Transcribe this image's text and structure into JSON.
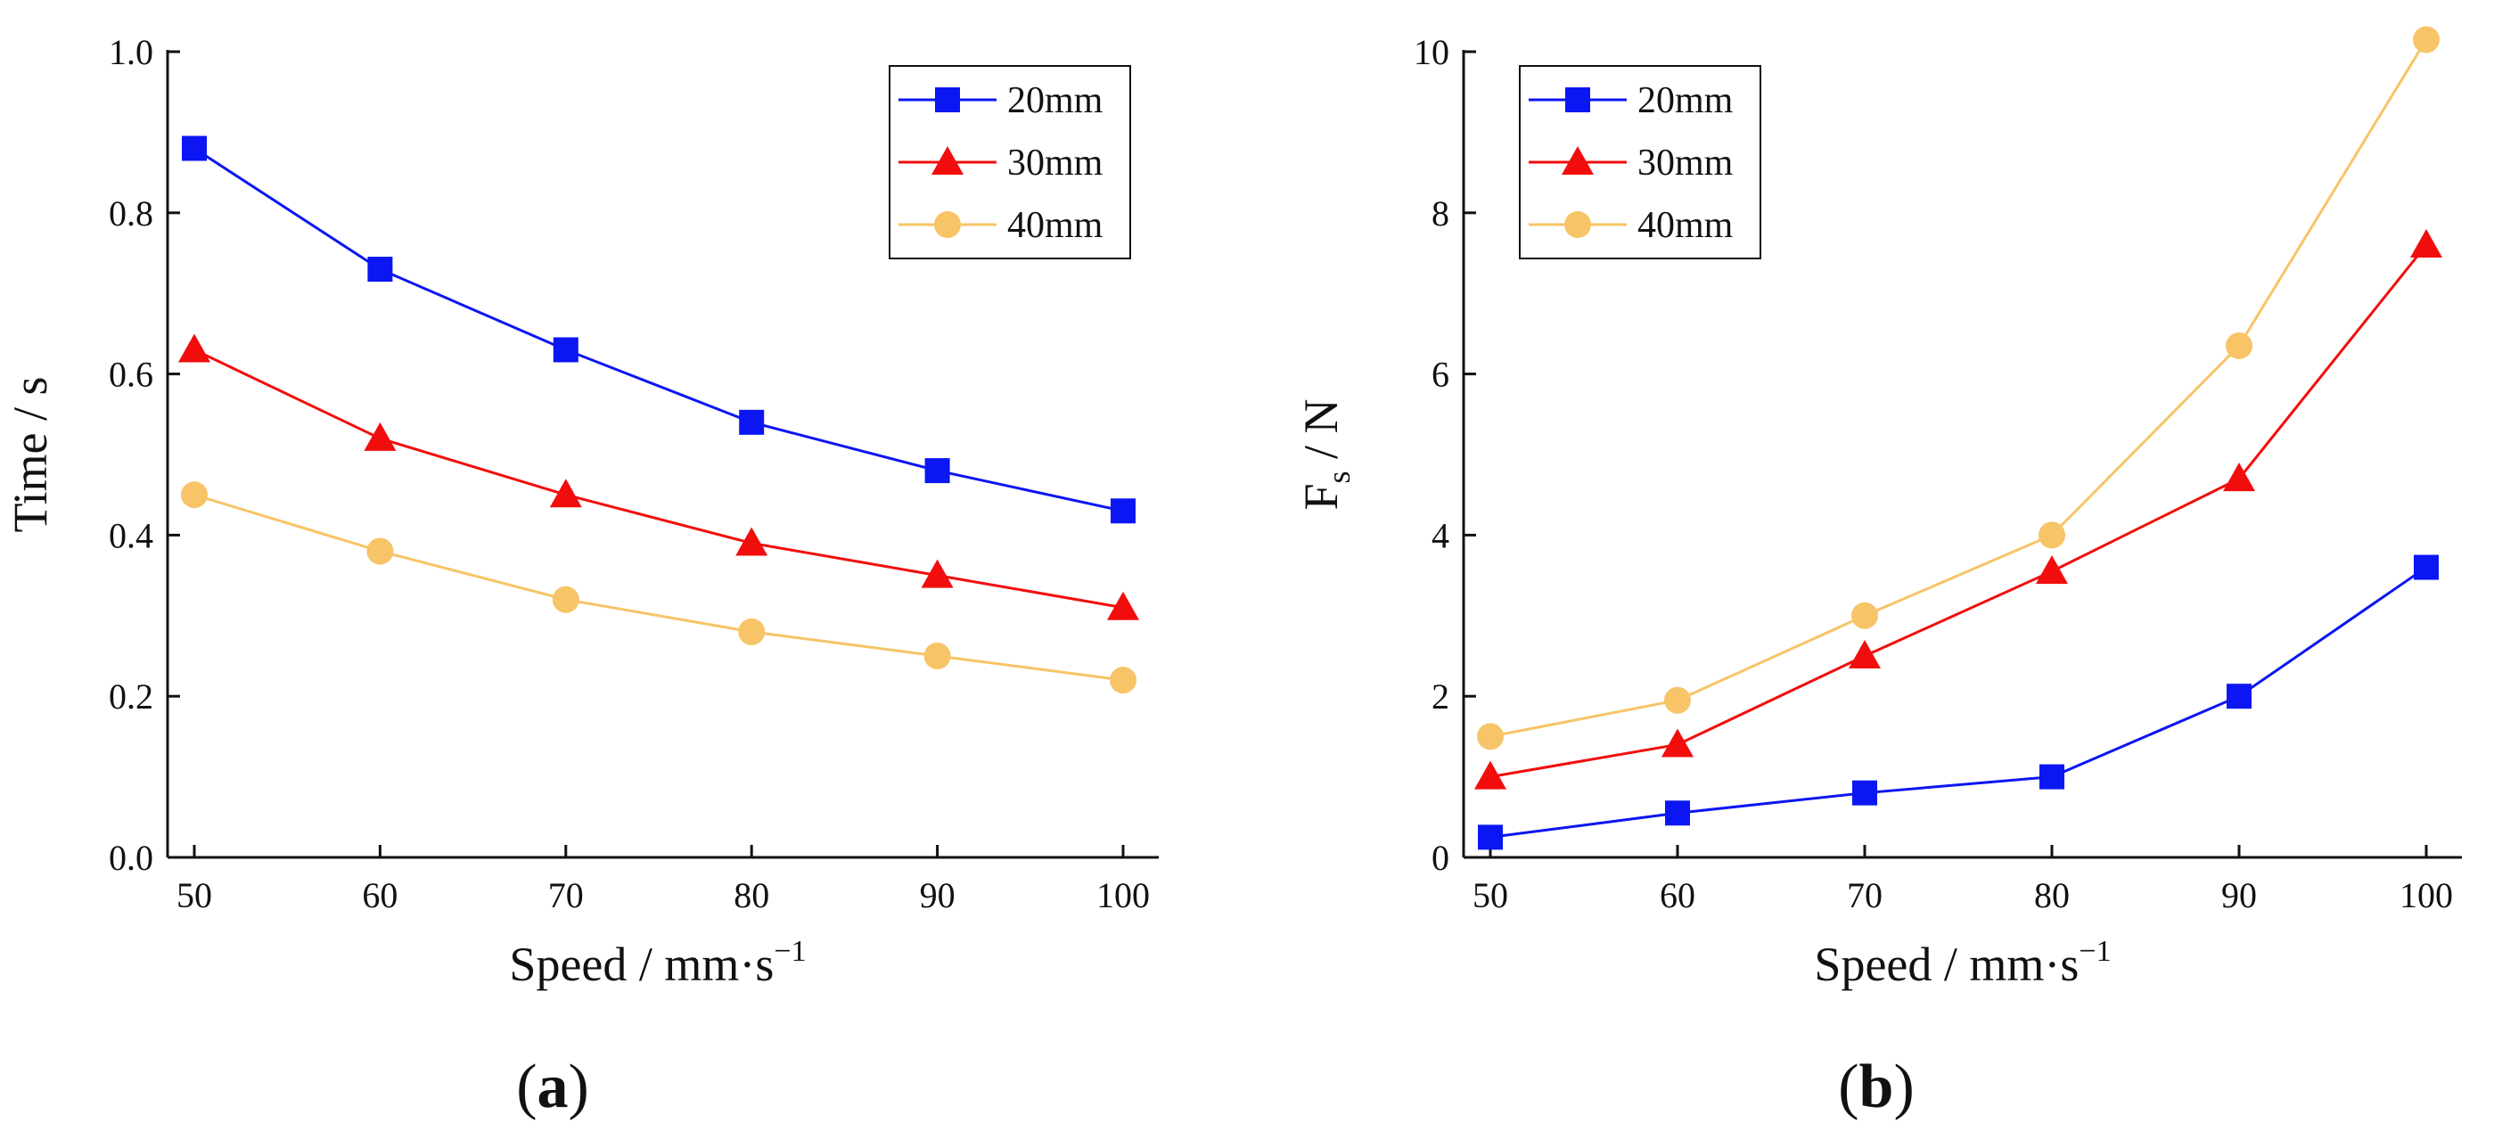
{
  "chart_data": [
    {
      "type": "line",
      "panel_label": "a",
      "xlabel": "Speed / mm·s",
      "xlabel_sup": "−1",
      "ylabel": "Time / s",
      "x": [
        50,
        60,
        70,
        80,
        90,
        100
      ],
      "xticks": [
        "50",
        "60",
        "70",
        "80",
        "90",
        "100"
      ],
      "ylim": [
        0,
        1.0
      ],
      "yticks": [
        "0.0",
        "0.2",
        "0.4",
        "0.6",
        "0.8",
        "1.0"
      ],
      "legend_position": "top-right",
      "series": [
        {
          "name": "20mm",
          "marker": "square",
          "color": "#0b16f2",
          "values": [
            0.88,
            0.73,
            0.63,
            0.54,
            0.48,
            0.43
          ]
        },
        {
          "name": "30mm",
          "marker": "triangle",
          "color": "#f20d0d",
          "values": [
            0.63,
            0.52,
            0.45,
            0.39,
            0.35,
            0.31
          ]
        },
        {
          "name": "40mm",
          "marker": "circle",
          "color": "#f7c467",
          "values": [
            0.45,
            0.38,
            0.32,
            0.28,
            0.25,
            0.22
          ]
        }
      ]
    },
    {
      "type": "line",
      "panel_label": "b",
      "xlabel": "Speed / mm·s",
      "xlabel_sup": "−1",
      "ylabel": "F",
      "ylabel_sub": "s",
      "ylabel_rest": " / N",
      "x": [
        50,
        60,
        70,
        80,
        90,
        100
      ],
      "xticks": [
        "50",
        "60",
        "70",
        "80",
        "90",
        "100"
      ],
      "ylim": [
        0,
        10
      ],
      "yticks": [
        "0",
        "2",
        "4",
        "6",
        "8",
        "10"
      ],
      "legend_position": "top-left",
      "series": [
        {
          "name": "20mm",
          "marker": "square",
          "color": "#0b16f2",
          "values": [
            0.25,
            0.55,
            0.8,
            1.0,
            2.0,
            3.6
          ]
        },
        {
          "name": "30mm",
          "marker": "triangle",
          "color": "#f20d0d",
          "values": [
            1.0,
            1.4,
            2.5,
            3.55,
            4.7,
            7.6
          ]
        },
        {
          "name": "40mm",
          "marker": "circle",
          "color": "#f7c467",
          "values": [
            1.5,
            1.95,
            3.0,
            4.0,
            6.35,
            10.15
          ]
        }
      ]
    }
  ]
}
